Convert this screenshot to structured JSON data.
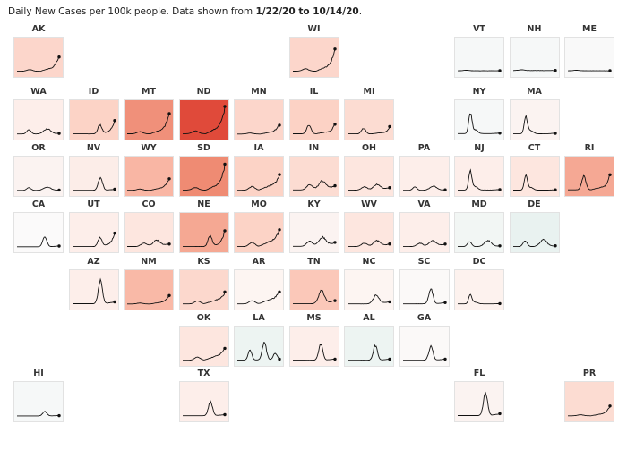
{
  "header": {
    "prefix": "Daily New Cases per 100k people. Data shown from ",
    "date_range": "1/22/20 to 10/14/20",
    "suffix": "."
  },
  "colors": {
    "line": "#111111",
    "neutral_tile": "#f6f8f8",
    "cooler_tile": "#edf4f2",
    "low_tile": "#fdf0ec",
    "mid_tile": "#fbd2c5",
    "high_tile": "#f08b72",
    "max_tile": "#e04a3a"
  },
  "chart_data": {
    "type": "line",
    "title": "Daily New Cases per 100k people. Data shown from 1/22/20 to 10/14/20.",
    "xlabel": "",
    "ylabel": "",
    "grid": false,
    "layout": "tile-grid-map",
    "shared_y_scale": true,
    "ylim": [
      0,
      100
    ],
    "x_range": [
      "1/22/20",
      "10/14/20"
    ],
    "tiles": [
      {
        "state": "AK",
        "row": 0,
        "col": 0,
        "color": "#fcd6cb",
        "pattern": "rise_late",
        "peak": 35
      },
      {
        "state": "WI",
        "row": 0,
        "col": 5,
        "color": "#fcd6cb",
        "pattern": "rise_late",
        "peak": 50
      },
      {
        "state": "VT",
        "row": 0,
        "col": 8,
        "color": "#f6f8f8",
        "pattern": "flat",
        "peak": 3
      },
      {
        "state": "NH",
        "row": 0,
        "col": 9,
        "color": "#f6f8f8",
        "pattern": "flat",
        "peak": 4
      },
      {
        "state": "ME",
        "row": 0,
        "col": 10,
        "color": "#f9f9f9",
        "pattern": "flat",
        "peak": 3
      },
      {
        "state": "WA",
        "row": 1,
        "col": 0,
        "color": "#fdeeea",
        "pattern": "two_waves",
        "peak": 12
      },
      {
        "state": "ID",
        "row": 1,
        "col": 1,
        "color": "#fcd3c6",
        "pattern": "summer_then_rise",
        "peak": 30
      },
      {
        "state": "MT",
        "row": 1,
        "col": 2,
        "color": "#f0907a",
        "pattern": "rise_late",
        "peak": 45
      },
      {
        "state": "ND",
        "row": 1,
        "col": 3,
        "color": "#e04a3a",
        "pattern": "rise_late",
        "peak": 60
      },
      {
        "state": "MN",
        "row": 1,
        "col": 4,
        "color": "#fcd6cb",
        "pattern": "rise_late",
        "peak": 22
      },
      {
        "state": "IL",
        "row": 1,
        "col": 5,
        "color": "#fcd2c5",
        "pattern": "spring_then_rise",
        "peak": 24
      },
      {
        "state": "MI",
        "row": 1,
        "col": 6,
        "color": "#fcdcd2",
        "pattern": "spring_then_rise",
        "peak": 16
      },
      {
        "state": "NY",
        "row": 1,
        "col": 8,
        "color": "#f6f8f8",
        "pattern": "spring_peak",
        "peak": 48
      },
      {
        "state": "MA",
        "row": 1,
        "col": 9,
        "color": "#fbf3f1",
        "pattern": "spring_peak",
        "peak": 40
      },
      {
        "state": "OR",
        "row": 2,
        "col": 0,
        "color": "#fbf3f1",
        "pattern": "two_waves",
        "peak": 8
      },
      {
        "state": "NV",
        "row": 2,
        "col": 1,
        "color": "#fcede8",
        "pattern": "summer_wave",
        "peak": 30
      },
      {
        "state": "WY",
        "row": 2,
        "col": 2,
        "color": "#f9b6a4",
        "pattern": "rise_late",
        "peak": 28
      },
      {
        "state": "SD",
        "row": 2,
        "col": 3,
        "color": "#ef8b73",
        "pattern": "rise_late",
        "peak": 55
      },
      {
        "state": "IA",
        "row": 2,
        "col": 4,
        "color": "#fcd3c6",
        "pattern": "noisy_rise",
        "peak": 34
      },
      {
        "state": "IN",
        "row": 2,
        "col": 5,
        "color": "#fcdcd2",
        "pattern": "plateau_rise",
        "peak": 22
      },
      {
        "state": "OH",
        "row": 2,
        "col": 6,
        "color": "#fde6df",
        "pattern": "plateau_rise",
        "peak": 14
      },
      {
        "state": "PA",
        "row": 2,
        "col": 7,
        "color": "#fdeeea",
        "pattern": "two_waves",
        "peak": 10
      },
      {
        "state": "NJ",
        "row": 2,
        "col": 8,
        "color": "#fdeeea",
        "pattern": "spring_peak",
        "peak": 44
      },
      {
        "state": "CT",
        "row": 2,
        "col": 9,
        "color": "#fde6df",
        "pattern": "spring_peak",
        "peak": 34
      },
      {
        "state": "RI",
        "row": 2,
        "col": 10,
        "color": "#f5a894",
        "pattern": "spring_then_rise",
        "peak": 38
      },
      {
        "state": "CA",
        "row": 3,
        "col": 0,
        "color": "#fbfafa",
        "pattern": "summer_wave",
        "peak": 22
      },
      {
        "state": "UT",
        "row": 3,
        "col": 1,
        "color": "#fdeeea",
        "pattern": "summer_then_rise",
        "peak": 30
      },
      {
        "state": "CO",
        "row": 3,
        "col": 2,
        "color": "#fde6df",
        "pattern": "plateau_rise",
        "peak": 15
      },
      {
        "state": "NE",
        "row": 3,
        "col": 3,
        "color": "#f5a893",
        "pattern": "summer_then_rise",
        "peak": 36
      },
      {
        "state": "MO",
        "row": 3,
        "col": 4,
        "color": "#fcd3c6",
        "pattern": "noisy_rise",
        "peak": 38
      },
      {
        "state": "KY",
        "row": 3,
        "col": 5,
        "color": "#fbf3f1",
        "pattern": "plateau_rise",
        "peak": 22
      },
      {
        "state": "WV",
        "row": 3,
        "col": 6,
        "color": "#fde6df",
        "pattern": "plateau_rise",
        "peak": 14
      },
      {
        "state": "VA",
        "row": 3,
        "col": 7,
        "color": "#fdeeea",
        "pattern": "plateau_rise",
        "peak": 14
      },
      {
        "state": "MD",
        "row": 3,
        "col": 8,
        "color": "#f2f6f4",
        "pattern": "two_waves",
        "peak": 14
      },
      {
        "state": "DE",
        "row": 3,
        "col": 9,
        "color": "#e9f2f0",
        "pattern": "two_waves",
        "peak": 16
      },
      {
        "state": "AZ",
        "row": 4,
        "col": 1,
        "color": "#fdeeea",
        "pattern": "summer_wave",
        "peak": 52
      },
      {
        "state": "NM",
        "row": 4,
        "col": 2,
        "color": "#f9b9a7",
        "pattern": "rise_late",
        "peak": 20
      },
      {
        "state": "KS",
        "row": 4,
        "col": 3,
        "color": "#fcd8cd",
        "pattern": "noisy_rise",
        "peak": 26
      },
      {
        "state": "AR",
        "row": 4,
        "col": 4,
        "color": "#fdf5f2",
        "pattern": "noisy_rise",
        "peak": 30
      },
      {
        "state": "TN",
        "row": 4,
        "col": 5,
        "color": "#fbc8b9",
        "pattern": "summer_plateau",
        "peak": 30
      },
      {
        "state": "NC",
        "row": 4,
        "col": 6,
        "color": "#fdf5f2",
        "pattern": "summer_plateau",
        "peak": 20
      },
      {
        "state": "SC",
        "row": 4,
        "col": 7,
        "color": "#fbf9f8",
        "pattern": "summer_wave",
        "peak": 34
      },
      {
        "state": "DC",
        "row": 4,
        "col": 8,
        "color": "#fdf2ee",
        "pattern": "spring_peak",
        "peak": 22
      },
      {
        "state": "OK",
        "row": 5,
        "col": 3,
        "color": "#fde6df",
        "pattern": "noisy_rise",
        "peak": 28
      },
      {
        "state": "LA",
        "row": 5,
        "col": 4,
        "color": "#edf4f2",
        "pattern": "two_waves_late",
        "peak": 40
      },
      {
        "state": "MS",
        "row": 5,
        "col": 5,
        "color": "#fdeeea",
        "pattern": "summer_wave",
        "peak": 36
      },
      {
        "state": "AL",
        "row": 5,
        "col": 6,
        "color": "#edf4f2",
        "pattern": "summer_wave",
        "peak": 34
      },
      {
        "state": "GA",
        "row": 5,
        "col": 7,
        "color": "#fbf9f8",
        "pattern": "summer_wave",
        "peak": 32
      },
      {
        "state": "HI",
        "row": 6,
        "col": 0,
        "color": "#f6f8f8",
        "pattern": "summer_wave",
        "peak": 10
      },
      {
        "state": "TX",
        "row": 6,
        "col": 3,
        "color": "#fdeeea",
        "pattern": "summer_wave",
        "peak": 32
      },
      {
        "state": "FL",
        "row": 6,
        "col": 8,
        "color": "#fbf3f1",
        "pattern": "summer_wave",
        "peak": 52
      },
      {
        "state": "PR",
        "row": 6,
        "col": 10,
        "color": "#fcdcd2",
        "pattern": "rise_late",
        "peak": 22
      }
    ]
  }
}
